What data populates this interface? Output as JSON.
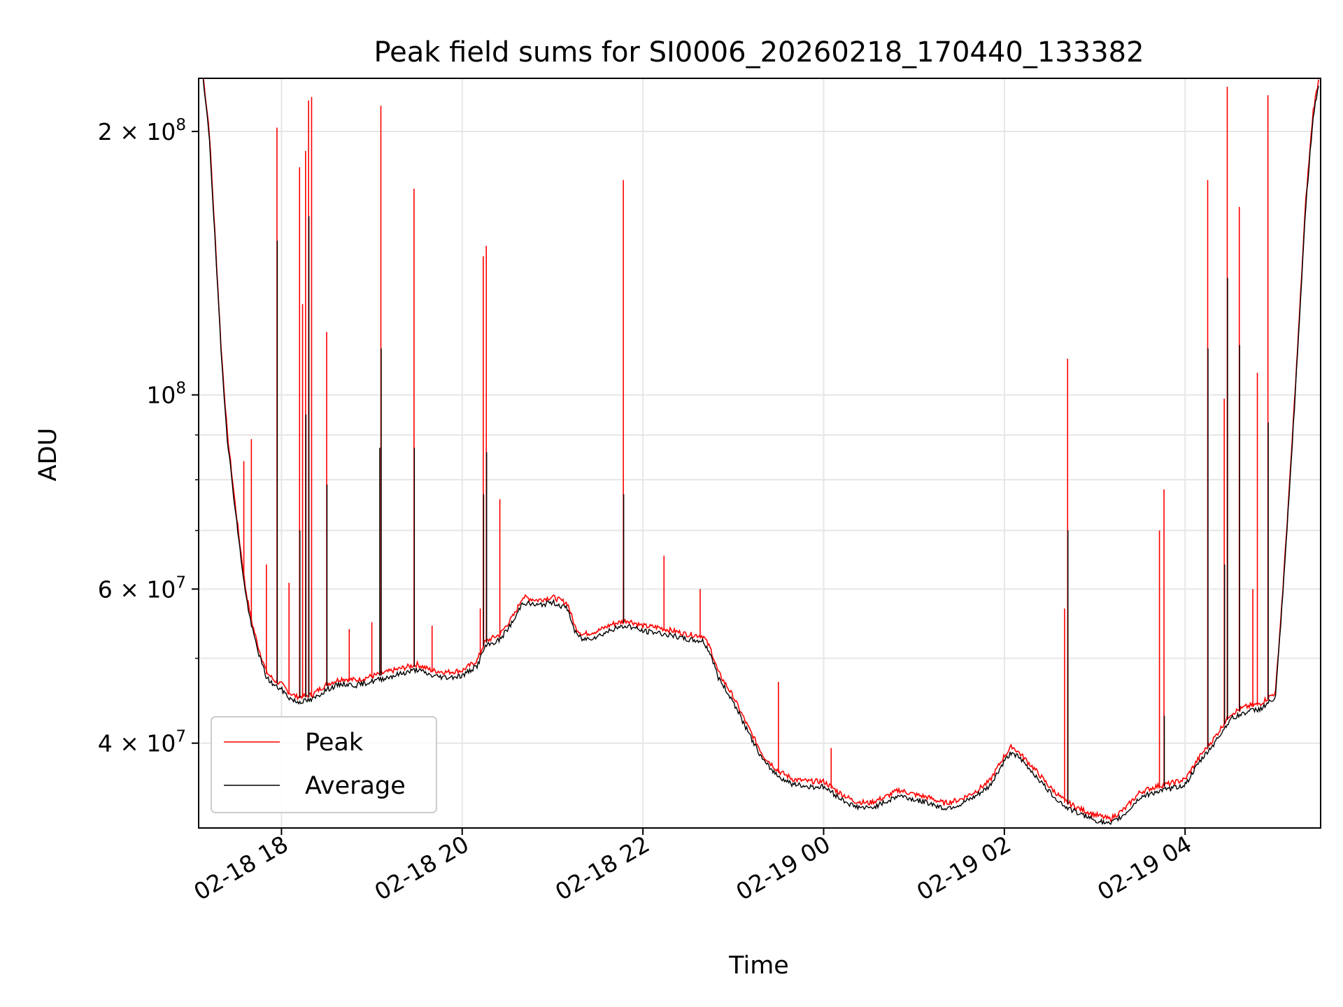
{
  "chart_data": {
    "type": "line",
    "title": "Peak field sums for SI0006_20260218_170440_133382",
    "xlabel": "Time",
    "ylabel": "ADU",
    "yscale": "log",
    "xlim": [
      "2026-02-18 17:05",
      "2026-02-19 05:30"
    ],
    "ylim": [
      32000000,
      230000000
    ],
    "grid": true,
    "legend_position": "lower-left",
    "x_ticks": [
      {
        "value": "2026-02-18 18:00",
        "label": "02-18 18"
      },
      {
        "value": "2026-02-18 20:00",
        "label": "02-18 20"
      },
      {
        "value": "2026-02-18 22:00",
        "label": "02-18 22"
      },
      {
        "value": "2026-02-19 00:00",
        "label": "02-19 00"
      },
      {
        "value": "2026-02-19 02:00",
        "label": "02-19 02"
      },
      {
        "value": "2026-02-19 04:00",
        "label": "02-19 04"
      }
    ],
    "y_major_ticks": [
      {
        "value": 100000000,
        "base": "10",
        "exp": "8",
        "coef": ""
      },
      {
        "value": 40000000,
        "base": "10",
        "exp": "7",
        "coef": "4"
      },
      {
        "value": 60000000,
        "base": "10",
        "exp": "7",
        "coef": "6"
      },
      {
        "value": 200000000,
        "base": "10",
        "exp": "8",
        "coef": "2"
      }
    ],
    "y_minor_gridlines": [
      50000000,
      70000000,
      80000000,
      90000000
    ],
    "series": [
      {
        "name": "Peak",
        "color": "#ff0000",
        "points": [
          [
            "2026-02-18 17:08",
            230000000
          ],
          [
            "2026-02-18 17:12",
            200000000
          ],
          [
            "2026-02-18 17:16",
            150000000
          ],
          [
            "2026-02-18 17:20",
            112000000
          ],
          [
            "2026-02-18 17:24",
            90000000
          ],
          [
            "2026-02-18 17:28",
            78000000
          ],
          [
            "2026-02-18 17:32",
            68000000
          ],
          [
            "2026-02-18 17:36",
            60000000
          ],
          [
            "2026-02-18 17:40",
            55000000
          ],
          [
            "2026-02-18 17:45",
            51000000
          ],
          [
            "2026-02-18 17:50",
            48000000
          ],
          [
            "2026-02-18 17:55",
            47000000
          ],
          [
            "2026-02-18 18:00",
            46500000
          ],
          [
            "2026-02-18 18:05",
            45500000
          ],
          [
            "2026-02-18 18:10",
            45000000
          ],
          [
            "2026-02-18 18:20",
            45200000
          ],
          [
            "2026-02-18 18:30",
            46500000
          ],
          [
            "2026-02-18 18:40",
            47200000
          ],
          [
            "2026-02-18 18:50",
            47000000
          ],
          [
            "2026-02-18 19:00",
            47500000
          ],
          [
            "2026-02-18 19:10",
            48000000
          ],
          [
            "2026-02-18 19:20",
            48500000
          ],
          [
            "2026-02-18 19:30",
            49000000
          ],
          [
            "2026-02-18 19:40",
            48200000
          ],
          [
            "2026-02-18 19:50",
            48000000
          ],
          [
            "2026-02-18 20:00",
            48200000
          ],
          [
            "2026-02-18 20:10",
            49500000
          ],
          [
            "2026-02-18 20:15",
            52000000
          ],
          [
            "2026-02-18 20:25",
            53000000
          ],
          [
            "2026-02-18 20:35",
            56000000
          ],
          [
            "2026-02-18 20:40",
            58500000
          ],
          [
            "2026-02-18 20:50",
            58000000
          ],
          [
            "2026-02-18 21:00",
            58500000
          ],
          [
            "2026-02-18 21:10",
            57500000
          ],
          [
            "2026-02-18 21:15",
            54000000
          ],
          [
            "2026-02-18 21:20",
            53000000
          ],
          [
            "2026-02-18 21:30",
            53500000
          ],
          [
            "2026-02-18 21:40",
            54500000
          ],
          [
            "2026-02-18 21:50",
            55000000
          ],
          [
            "2026-02-18 22:00",
            54200000
          ],
          [
            "2026-02-18 22:10",
            54000000
          ],
          [
            "2026-02-18 22:20",
            53500000
          ],
          [
            "2026-02-18 22:30",
            53000000
          ],
          [
            "2026-02-18 22:40",
            52800000
          ],
          [
            "2026-02-18 22:45",
            51000000
          ],
          [
            "2026-02-18 22:50",
            48000000
          ],
          [
            "2026-02-18 23:00",
            45000000
          ],
          [
            "2026-02-18 23:10",
            41500000
          ],
          [
            "2026-02-18 23:20",
            38500000
          ],
          [
            "2026-02-18 23:30",
            37000000
          ],
          [
            "2026-02-18 23:40",
            36200000
          ],
          [
            "2026-02-18 23:50",
            36000000
          ],
          [
            "2026-02-19 00:00",
            36000000
          ],
          [
            "2026-02-19 00:10",
            35000000
          ],
          [
            "2026-02-19 00:20",
            34200000
          ],
          [
            "2026-02-19 00:30",
            34000000
          ],
          [
            "2026-02-19 00:40",
            34500000
          ],
          [
            "2026-02-19 00:50",
            35200000
          ],
          [
            "2026-02-19 01:00",
            34800000
          ],
          [
            "2026-02-19 01:10",
            34500000
          ],
          [
            "2026-02-19 01:20",
            34000000
          ],
          [
            "2026-02-19 01:30",
            34300000
          ],
          [
            "2026-02-19 01:40",
            35000000
          ],
          [
            "2026-02-19 01:50",
            36000000
          ],
          [
            "2026-02-19 02:00",
            38500000
          ],
          [
            "2026-02-19 02:05",
            39500000
          ],
          [
            "2026-02-19 02:10",
            38800000
          ],
          [
            "2026-02-19 02:20",
            37200000
          ],
          [
            "2026-02-19 02:30",
            35500000
          ],
          [
            "2026-02-19 02:40",
            34200000
          ],
          [
            "2026-02-19 02:50",
            33500000
          ],
          [
            "2026-02-19 03:00",
            33000000
          ],
          [
            "2026-02-19 03:10",
            32600000
          ],
          [
            "2026-02-19 03:20",
            33500000
          ],
          [
            "2026-02-19 03:30",
            35000000
          ],
          [
            "2026-02-19 03:40",
            35500000
          ],
          [
            "2026-02-19 03:50",
            35800000
          ],
          [
            "2026-02-19 04:00",
            36200000
          ],
          [
            "2026-02-19 04:10",
            38500000
          ],
          [
            "2026-02-19 04:20",
            40500000
          ],
          [
            "2026-02-19 04:30",
            43000000
          ],
          [
            "2026-02-19 04:40",
            43800000
          ],
          [
            "2026-02-19 04:50",
            44200000
          ],
          [
            "2026-02-19 05:00",
            45500000
          ],
          [
            "2026-02-19 05:05",
            60000000
          ],
          [
            "2026-02-19 05:10",
            82000000
          ],
          [
            "2026-02-19 05:15",
            115000000
          ],
          [
            "2026-02-19 05:20",
            165000000
          ],
          [
            "2026-02-19 05:25",
            210000000
          ],
          [
            "2026-02-19 05:29",
            230000000
          ]
        ],
        "spikes": [
          [
            "2026-02-18 17:35",
            84000000
          ],
          [
            "2026-02-18 17:40",
            89000000
          ],
          [
            "2026-02-18 17:50",
            64000000
          ],
          [
            "2026-02-18 17:57",
            202000000
          ],
          [
            "2026-02-18 18:05",
            61000000
          ],
          [
            "2026-02-18 18:12",
            182000000
          ],
          [
            "2026-02-18 18:14",
            127000000
          ],
          [
            "2026-02-18 18:16",
            190000000
          ],
          [
            "2026-02-18 18:18",
            217000000
          ],
          [
            "2026-02-18 18:20",
            219000000
          ],
          [
            "2026-02-18 18:30",
            118000000
          ],
          [
            "2026-02-18 18:45",
            54000000
          ],
          [
            "2026-02-18 19:00",
            55000000
          ],
          [
            "2026-02-18 19:06",
            214000000
          ],
          [
            "2026-02-18 19:28",
            172000000
          ],
          [
            "2026-02-18 19:40",
            54500000
          ],
          [
            "2026-02-18 20:12",
            57000000
          ],
          [
            "2026-02-18 20:14",
            144000000
          ],
          [
            "2026-02-18 20:16",
            148000000
          ],
          [
            "2026-02-18 20:25",
            76000000
          ],
          [
            "2026-02-18 21:47",
            176000000
          ],
          [
            "2026-02-18 22:14",
            65500000
          ],
          [
            "2026-02-18 22:38",
            60000000
          ],
          [
            "2026-02-18 23:30",
            47000000
          ],
          [
            "2026-02-19 00:05",
            39500000
          ],
          [
            "2026-02-19 02:40",
            57000000
          ],
          [
            "2026-02-19 02:42",
            110000000
          ],
          [
            "2026-02-19 03:43",
            70000000
          ],
          [
            "2026-02-19 03:46",
            78000000
          ],
          [
            "2026-02-19 04:15",
            176000000
          ],
          [
            "2026-02-19 04:26",
            99000000
          ],
          [
            "2026-02-19 04:28",
            225000000
          ],
          [
            "2026-02-19 04:36",
            164000000
          ],
          [
            "2026-02-19 04:45",
            60000000
          ],
          [
            "2026-02-19 04:48",
            106000000
          ],
          [
            "2026-02-19 04:55",
            220000000
          ]
        ]
      },
      {
        "name": "Average",
        "color": "#000000",
        "spikes": [
          [
            "2026-02-18 17:57",
            150000000
          ],
          [
            "2026-02-18 18:12",
            70000000
          ],
          [
            "2026-02-18 18:16",
            95000000
          ],
          [
            "2026-02-18 18:18",
            160000000
          ],
          [
            "2026-02-18 18:30",
            79000000
          ],
          [
            "2026-02-18 19:05",
            87000000
          ],
          [
            "2026-02-18 19:06",
            113000000
          ],
          [
            "2026-02-18 19:28",
            87000000
          ],
          [
            "2026-02-18 20:14",
            77000000
          ],
          [
            "2026-02-18 20:16",
            86000000
          ],
          [
            "2026-02-18 21:47",
            77000000
          ],
          [
            "2026-02-19 02:42",
            70000000
          ],
          [
            "2026-02-19 03:46",
            43000000
          ],
          [
            "2026-02-19 04:15",
            113000000
          ],
          [
            "2026-02-19 04:26",
            64000000
          ],
          [
            "2026-02-19 04:28",
            136000000
          ],
          [
            "2026-02-19 04:36",
            114000000
          ],
          [
            "2026-02-19 04:55",
            93000000
          ]
        ]
      }
    ]
  }
}
